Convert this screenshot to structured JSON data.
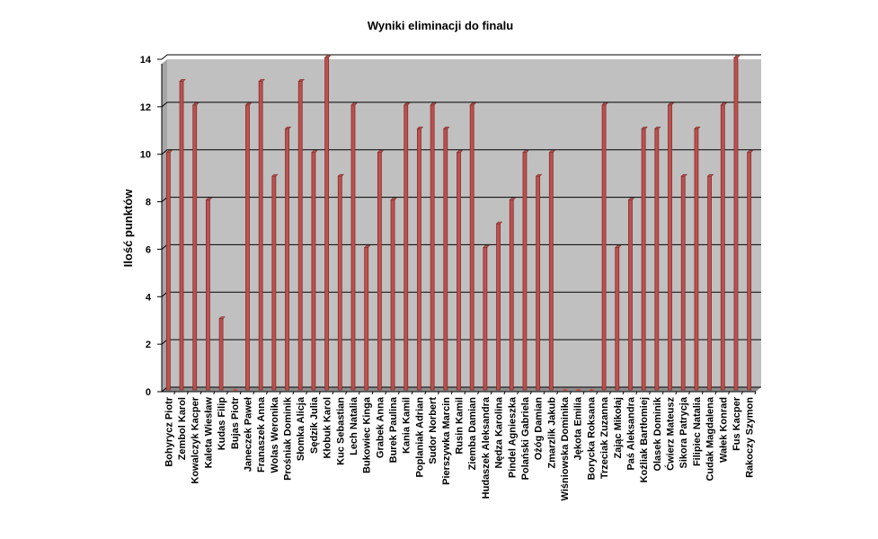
{
  "chart_data": {
    "type": "bar",
    "title": "Wyniki  eliminacji  do finalu",
    "xlabel": "",
    "ylabel": "Ilość punktów",
    "ylim": [
      0,
      14
    ],
    "yticks": [
      0,
      2,
      4,
      6,
      8,
      10,
      12,
      14
    ],
    "grid": true,
    "legend": "none",
    "categories": [
      "Bohyrycz Piotr",
      "Zembol Karol",
      "Kowalczyk Kacper",
      "Kaleta Wiesław",
      "Kudas Filip",
      "Bujas Piotr",
      "Janeczek Paweł",
      "Franaszek Anna",
      "Wolas Weronika",
      "Prośniak Dominik",
      "Słomka Alicja",
      "Sędzik Julia",
      "Kłobuk Karol",
      "Kuc Sebastian",
      "Lech Natalia",
      "Bukowiec Kinga",
      "Grabek Anna",
      "Burek Paulina",
      "Kania Kamil",
      "Poplaniak Adrian",
      "Sudor Norbert",
      "Pierszywka Marcin",
      "Rusin Kamil",
      "Ziemba Damian",
      "Hudaszek Aleksandra",
      "Nędza Karolina",
      "Pindel Agnieszka",
      "Polański Gabriela",
      "Ożóg Damian",
      "Zmarzlik Jakub",
      "Wiśniowska Dominika",
      "Jękota Emilia",
      "Borycka Roksana",
      "Trzeciak Zuzanna",
      "Zając Mikołaj",
      "Paś Aleksandra",
      "Koźliak Bartłomiej",
      "Olasek Dominik",
      "Ćwierz Mateusz",
      "Sikora Patrycja",
      "Filipiec Natalia",
      "Cudak Magdalena",
      "Wałek Konrad",
      "Fus Kacper",
      "Rakoczy Szymon"
    ],
    "values": [
      10,
      13,
      12,
      8,
      3,
      0,
      12,
      13,
      9,
      11,
      13,
      10,
      14,
      9,
      12,
      6,
      10,
      8,
      12,
      11,
      12,
      11,
      10,
      12,
      6,
      7,
      8,
      10,
      9,
      10,
      0,
      0,
      0,
      12,
      6,
      8,
      11,
      11,
      12,
      9,
      11,
      9,
      12,
      14,
      10
    ],
    "colors": {
      "bar": "#c0504d",
      "bar_dark": "#7f2f2c",
      "plot_bg": "#c0c0c0",
      "wall": "#a6a6a6",
      "floor": "#8c8c8c",
      "grid": "#000000"
    }
  }
}
